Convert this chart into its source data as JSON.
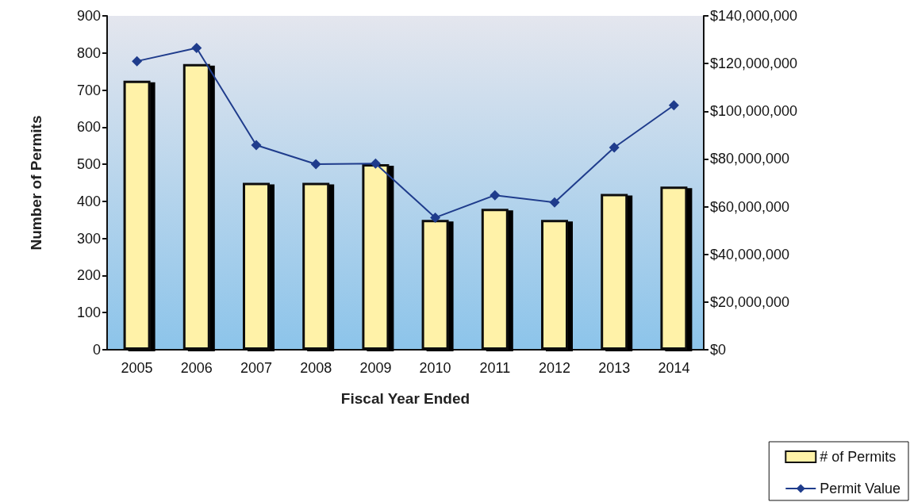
{
  "chart_data": {
    "type": "bar",
    "xlabel": "Fiscal Year Ended",
    "ylabel": "Number of Permits",
    "categories": [
      "2005",
      "2006",
      "2007",
      "2008",
      "2009",
      "2010",
      "2011",
      "2012",
      "2013",
      "2014"
    ],
    "series": [
      {
        "name": "# of Permits",
        "color": "#fff2a8",
        "values": [
          725,
          770,
          450,
          450,
          500,
          350,
          380,
          350,
          420,
          440
        ]
      },
      {
        "name": "Permit Value",
        "type": "line",
        "axis": "y2",
        "color": "#1f3c8c",
        "values": [
          121000000,
          126500000,
          85800000,
          77800000,
          78100000,
          55400000,
          64800000,
          61800000,
          84800000,
          102500000
        ]
      }
    ],
    "ylim": [
      0,
      900
    ],
    "yticks": [
      0,
      100,
      200,
      300,
      400,
      500,
      600,
      700,
      800,
      900
    ],
    "y2lim": [
      0,
      140000000
    ],
    "y2ticks": [
      {
        "value": 0,
        "label": "$0"
      },
      {
        "value": 20000000,
        "label": "$20,000,000"
      },
      {
        "value": 40000000,
        "label": "$40,000,000"
      },
      {
        "value": 60000000,
        "label": "$60,000,000"
      },
      {
        "value": 80000000,
        "label": "$80,000,000"
      },
      {
        "value": 100000000,
        "label": "$100,000,000"
      },
      {
        "value": 120000000,
        "label": "$120,000,000"
      },
      {
        "value": 140000000,
        "label": "$140,000,000"
      }
    ],
    "marker": "diamond",
    "line_style": "solid",
    "grid": false,
    "legend": "bottom right"
  }
}
